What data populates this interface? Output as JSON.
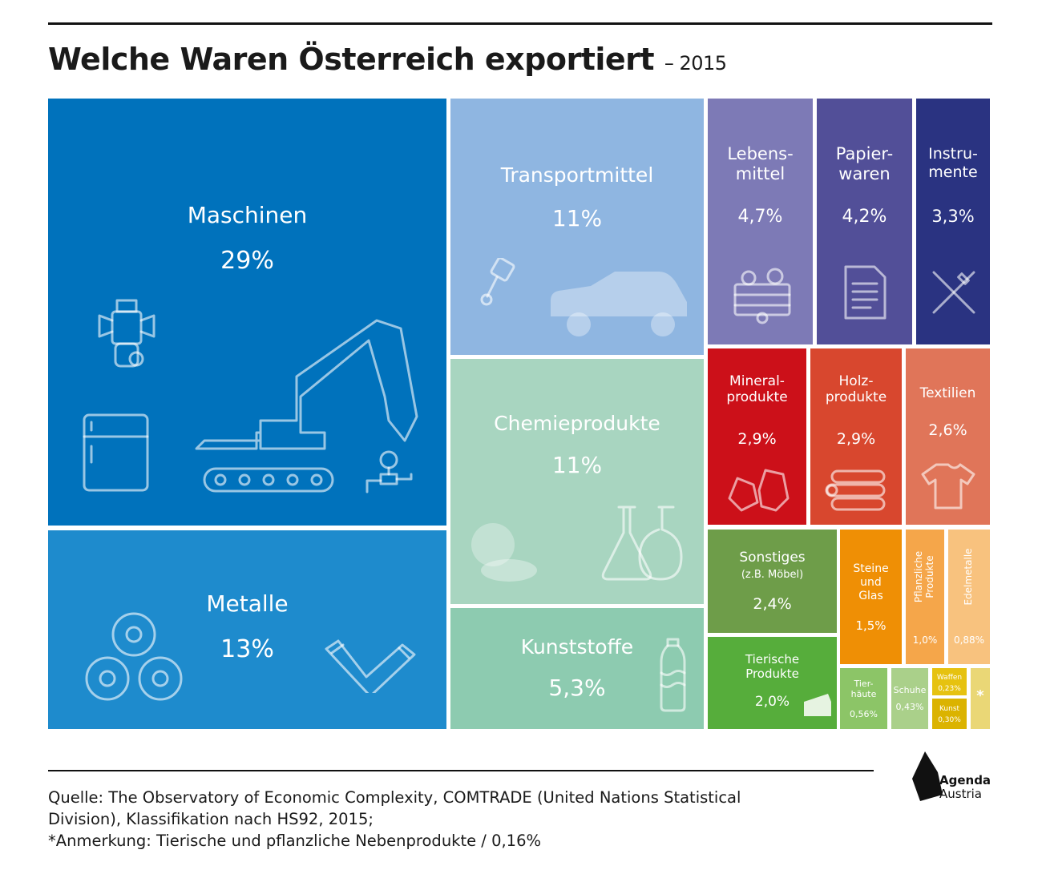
{
  "title": "Welche Waren Österreich exportiert",
  "title_suffix": "– 2015",
  "chart_data": {
    "type": "treemap",
    "unit": "%",
    "categories": [
      {
        "name": "Maschinen",
        "value": 29,
        "label": "29%",
        "color": "#0072bc",
        "icons": [
          "engine-icon",
          "fridge-icon",
          "excavator-icon",
          "valve-gauge-icon"
        ]
      },
      {
        "name": "Metalle",
        "value": 13,
        "label": "13%",
        "color": "#1e8bcd",
        "icons": [
          "metal-coils-icon",
          "pipe-bend-icon"
        ]
      },
      {
        "name": "Transportmittel",
        "value": 11,
        "label": "11%",
        "color": "#8fb6e1",
        "icons": [
          "piston-icon",
          "car-icon"
        ]
      },
      {
        "name": "Chemieprodukte",
        "value": 11,
        "label": "11%",
        "color": "#a8d5c0",
        "icons": [
          "pills-icon",
          "flasks-icon"
        ]
      },
      {
        "name": "Kunststoffe",
        "value": 5.3,
        "label": "5,3%",
        "color": "#8dcbb0",
        "icons": [
          "plastic-bottle-icon"
        ]
      },
      {
        "name": "Lebens-\nmittel",
        "value": 4.7,
        "label": "4,7%",
        "color": "#7d7ab6",
        "icons": [
          "vegetable-crate-icon"
        ]
      },
      {
        "name": "Papier-\nwaren",
        "value": 4.2,
        "label": "4,2%",
        "color": "#524f98",
        "icons": [
          "document-icon"
        ]
      },
      {
        "name": "Instru-\nmente",
        "value": 3.3,
        "label": "3,3%",
        "color": "#2a3381",
        "icons": [
          "scalpel-syringe-icon"
        ]
      },
      {
        "name": "Mineral-\nprodukte",
        "value": 2.9,
        "label": "2,9%",
        "color": "#cc1019",
        "icons": [
          "minerals-icon"
        ]
      },
      {
        "name": "Holz-\nprodukte",
        "value": 2.9,
        "label": "2,9%",
        "color": "#d8472e",
        "icons": [
          "logs-icon"
        ]
      },
      {
        "name": "Textilien",
        "value": 2.6,
        "label": "2,6%",
        "color": "#e07559",
        "icons": [
          "tshirt-icon"
        ]
      },
      {
        "name": "Sonstiges",
        "sublabel": "(z.B. Möbel)",
        "value": 2.4,
        "label": "2,4%",
        "color": "#6e9d49",
        "icons": []
      },
      {
        "name": "Tierische\nProdukte",
        "value": 2.0,
        "label": "2,0%",
        "color": "#56ad3b",
        "icons": [
          "cheese-icon"
        ]
      },
      {
        "name": "Steine\nund\nGlas",
        "value": 1.5,
        "label": "1,5%",
        "color": "#ef8f05",
        "icons": []
      },
      {
        "name": "Pflanzliche\nProdukte",
        "value": 1.0,
        "label": "1,0%",
        "color": "#f5a64a",
        "icons": []
      },
      {
        "name": "Edelmetalle",
        "value": 0.88,
        "label": "0,88%",
        "color": "#f8c27e",
        "icons": []
      },
      {
        "name": "Tier-\nhäute",
        "value": 0.56,
        "label": "0,56%",
        "color": "#8cc567",
        "icons": []
      },
      {
        "name": "Schuhe",
        "value": 0.43,
        "label": "0,43%",
        "color": "#aad08a",
        "icons": []
      },
      {
        "name": "Waffen",
        "value": 0.23,
        "label": "0,23%",
        "color": "#e6c210",
        "icons": []
      },
      {
        "name": "Kunst",
        "value": 0.3,
        "label": "0,30%",
        "color": "#dbb300",
        "icons": []
      },
      {
        "name": "*",
        "value": 0.16,
        "label": "",
        "color": "#ead776",
        "icons": []
      }
    ]
  },
  "source_lines": [
    "Quelle: The Observatory of Economic Complexity, COMTRADE (United Nations Statistical",
    "Division), Klassifikation nach HS92, 2015;",
    "*Anmerkung: Tierische und pflanzliche Nebenprodukte / 0,16%"
  ],
  "logo": {
    "line1": "Agenda",
    "line2": "Austria"
  }
}
